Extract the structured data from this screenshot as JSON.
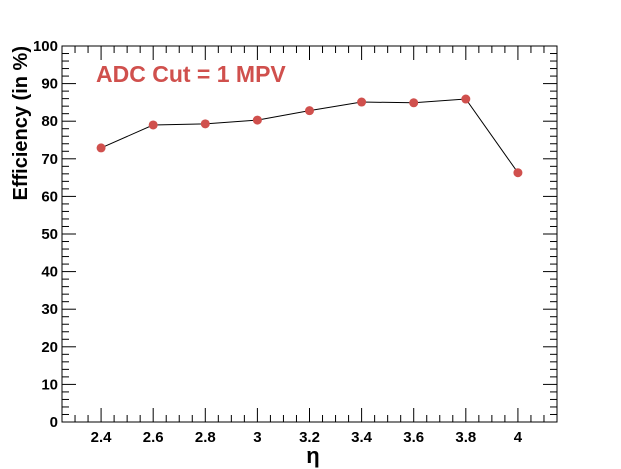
{
  "chart_data": {
    "type": "line",
    "title": "",
    "annotation": "ADC Cut = 1 MPV",
    "xlabel": "η",
    "ylabel": "Efficiency (in %)",
    "xlim": [
      2.25,
      4.15
    ],
    "ylim": [
      0,
      100
    ],
    "xticks": [
      "2.4",
      "2.6",
      "2.8",
      "3",
      "3.2",
      "3.4",
      "3.6",
      "3.8",
      "4"
    ],
    "yticks": [
      "0",
      "10",
      "20",
      "30",
      "40",
      "50",
      "60",
      "70",
      "80",
      "90",
      "100"
    ],
    "grid": false,
    "series": [
      {
        "x": [
          2.4,
          2.6,
          2.8,
          3.0,
          3.2,
          3.4,
          3.6,
          3.8,
          4.0
        ],
        "y": [
          72.9,
          79.0,
          79.3,
          80.3,
          82.8,
          85.1,
          84.9,
          85.9,
          66.3
        ],
        "marker_color": "#d0504d",
        "line_color": "#000000"
      }
    ],
    "annotation_color": "#d0504d"
  }
}
